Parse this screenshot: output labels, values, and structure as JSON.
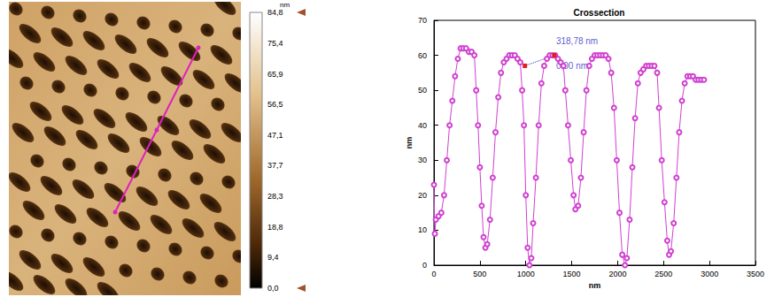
{
  "chart_data": [
    {
      "type": "image",
      "colorbar": {
        "title": "nm",
        "range": [
          0,
          84.8
        ],
        "ticks": [
          {
            "value": 0,
            "label": "0,0"
          },
          {
            "value": 9.4,
            "label": "9,4"
          },
          {
            "value": 18.8,
            "label": "18,8"
          },
          {
            "value": 28.3,
            "label": "28,3"
          },
          {
            "value": 37.7,
            "label": "37,7"
          },
          {
            "value": 47.1,
            "label": "47,1"
          },
          {
            "value": 56.5,
            "label": "56,5"
          },
          {
            "value": 65.9,
            "label": "65,9"
          },
          {
            "value": 75.4,
            "label": "75,4"
          },
          {
            "value": 84.8,
            "label": "84,8"
          }
        ]
      }
    },
    {
      "type": "line",
      "title": "Crossection",
      "xlabel": "nm",
      "ylabel": "nm",
      "color": "#d040d0",
      "marker": "circle",
      "grid": false,
      "xlim": [
        0,
        3500
      ],
      "xticks": [
        0,
        500,
        1000,
        1500,
        2000,
        2500,
        3000,
        3500
      ],
      "ylim": [
        0,
        70
      ],
      "yticks": [
        0,
        10,
        20,
        30,
        40,
        50,
        60,
        70
      ],
      "x": [
        0,
        10,
        20,
        50,
        80,
        110,
        140,
        170,
        200,
        230,
        260,
        290,
        320,
        350,
        380,
        410,
        440,
        460,
        480,
        500,
        520,
        540,
        560,
        580,
        610,
        640,
        670,
        700,
        730,
        760,
        790,
        820,
        850,
        880,
        910,
        940,
        960,
        980,
        1000,
        1020,
        1040,
        1060,
        1080,
        1110,
        1140,
        1170,
        1200,
        1230,
        1260,
        1290,
        1320,
        1350,
        1380,
        1410,
        1430,
        1460,
        1490,
        1520,
        1540,
        1570,
        1600,
        1630,
        1660,
        1690,
        1720,
        1750,
        1780,
        1810,
        1840,
        1870,
        1900,
        1930,
        1960,
        1990,
        2020,
        2050,
        2080,
        2100,
        2130,
        2160,
        2190,
        2220,
        2250,
        2280,
        2310,
        2340,
        2370,
        2400,
        2430,
        2450,
        2480,
        2510,
        2540,
        2560,
        2580,
        2610,
        2640,
        2670,
        2700,
        2730,
        2760,
        2790,
        2820,
        2850,
        2880,
        2910,
        2940
      ],
      "values": [
        23,
        9,
        13,
        14,
        15,
        20,
        30,
        40,
        47,
        54,
        59,
        62,
        62,
        62,
        61,
        61,
        60,
        50,
        40,
        28,
        17,
        8,
        5,
        6,
        13,
        25,
        38,
        48,
        55,
        58,
        59,
        60,
        60,
        60,
        59,
        58,
        50,
        40,
        20,
        5,
        0,
        2,
        12,
        25,
        40,
        52,
        57,
        59,
        60,
        60,
        60,
        59,
        58,
        57,
        50,
        40,
        30,
        20,
        16,
        17,
        25,
        38,
        50,
        57,
        59,
        60,
        60,
        60,
        60,
        60,
        59,
        55,
        45,
        30,
        15,
        3,
        0,
        2,
        13,
        28,
        42,
        52,
        55,
        56,
        57,
        57,
        57,
        57,
        55,
        45,
        30,
        18,
        7,
        3,
        4,
        12,
        25,
        38,
        47,
        52,
        54,
        54,
        54,
        53,
        53,
        53,
        53
      ],
      "cursors": {
        "x": [
          990,
          1310
        ],
        "y": [
          57,
          60
        ]
      },
      "annotations": [
        {
          "text": "318,78 nm",
          "x": 1330,
          "y": 64
        },
        {
          "text": "0,00 nm",
          "x": 1330,
          "y": 57
        }
      ]
    }
  ]
}
